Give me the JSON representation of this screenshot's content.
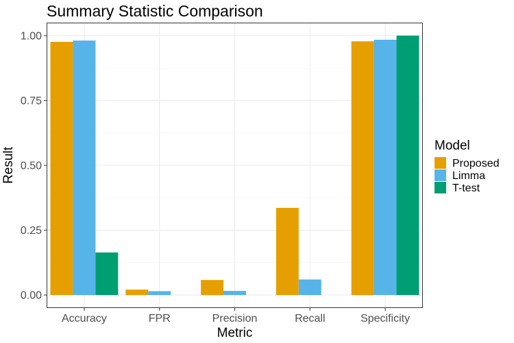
{
  "chart_data": {
    "type": "bar",
    "title": "Summary Statistic Comparison",
    "xlabel": "Metric",
    "ylabel": "Result",
    "categories": [
      "Accuracy",
      "FPR",
      "Precision",
      "Recall",
      "Specificity"
    ],
    "series": [
      {
        "name": "Proposed",
        "color": "#E69F00",
        "values": [
          0.976,
          0.021,
          0.058,
          0.336,
          0.978
        ]
      },
      {
        "name": "Limma",
        "color": "#56B4E9",
        "values": [
          0.981,
          0.015,
          0.016,
          0.06,
          0.984
        ]
      },
      {
        "name": "T-test",
        "color": "#009E73",
        "values": [
          0.164,
          0.0,
          0.0,
          0.0,
          1.0
        ]
      }
    ],
    "ylim": [
      -0.05,
      1.05
    ],
    "yticks": [
      0.0,
      0.25,
      0.5,
      0.75,
      1.0
    ],
    "ytick_labels": [
      "0.00",
      "0.25",
      "0.50",
      "0.75",
      "1.00"
    ],
    "grid": true,
    "legend": {
      "title": "Model",
      "placement": "right"
    }
  }
}
